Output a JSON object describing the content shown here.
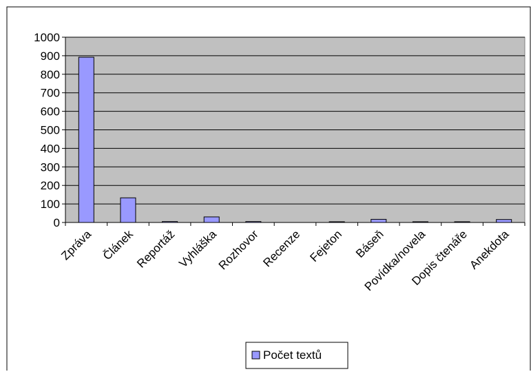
{
  "chart_data": {
    "type": "bar",
    "title": "",
    "xlabel": "",
    "ylabel": "",
    "categories": [
      "Zpráva",
      "Článek",
      "Reportáž",
      "Vyhláška",
      "Rozhovor",
      "Recenze",
      "Fejeton",
      "Báseň",
      "Povídka/novela",
      "Dopis čtenáře",
      "Anekdota"
    ],
    "series": [
      {
        "name": "Počet textů",
        "values": [
          892,
          133,
          5,
          30,
          5,
          0,
          4,
          17,
          4,
          4,
          16
        ]
      }
    ],
    "ylim": [
      0,
      1000
    ],
    "yticks": [
      0,
      100,
      200,
      300,
      400,
      500,
      600,
      700,
      800,
      900,
      1000
    ],
    "grid": true,
    "legend_position": "bottom-center",
    "colors": {
      "plot_background": "#c0c0c0",
      "bar_fill": "#9999ff",
      "bar_stroke": "#000000",
      "gridline": "#000000"
    }
  }
}
